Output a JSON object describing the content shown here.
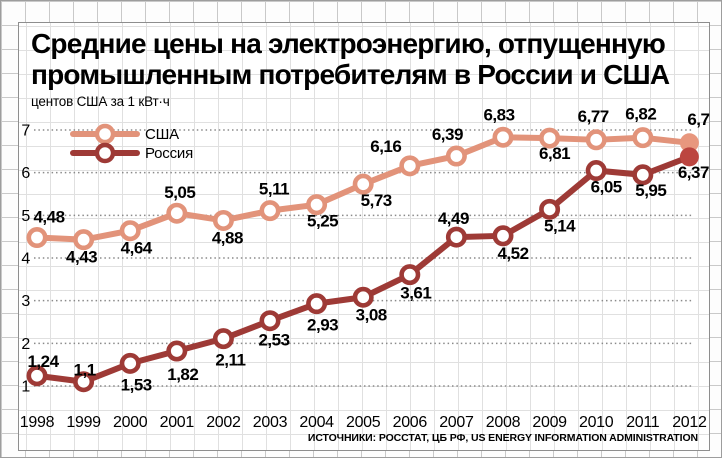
{
  "header": {
    "title_line1": "Средние цены на электроэнергию, отпущенную",
    "title_line2": "промышленным потребителям в России и США",
    "units_label": "центов США за 1 кВт·ч"
  },
  "footer": {
    "source_text": "ИСТОЧНИКИ: РОССТАТ, ЦБ РФ, US ENERGY INFORMATION ADMINISTRATION"
  },
  "colors": {
    "usa_line": "#e2937a",
    "usa_end_marker": "#e8977e",
    "russia_line": "#9e3a36",
    "russia_end_marker": "#bc4540",
    "dotted_gridline": "#8a8a8a",
    "text": "#000000"
  },
  "chart_data": {
    "type": "line",
    "title": "Средние цены на электроэнергию, отпущенную промышленным потребителям в России и США",
    "ylabel": "центов США за 1 кВт·ч",
    "xlabel": "",
    "categories": [
      "1998",
      "1999",
      "2000",
      "2001",
      "2002",
      "2003",
      "2004",
      "2005",
      "2006",
      "2007",
      "2008",
      "2009",
      "2010",
      "2011",
      "2012"
    ],
    "yticks": [
      1,
      2,
      3,
      4,
      5,
      6,
      7
    ],
    "ylim": [
      1,
      7
    ],
    "grid": "horizontal-dotted",
    "legend_position": "top-left-inside",
    "legend_marker": "line-with-open-circle",
    "series": [
      {
        "id": "usa",
        "name": "США",
        "color": "#e2937a",
        "end_fill": "#e8977e",
        "values": [
          4.48,
          4.43,
          4.64,
          5.05,
          4.88,
          5.11,
          5.25,
          5.73,
          6.16,
          6.39,
          6.83,
          6.81,
          6.77,
          6.82,
          6.7
        ],
        "labels": [
          "4,48",
          "4,43",
          "4,64",
          "5,05",
          "4,88",
          "5,11",
          "5,25",
          "5,73",
          "6,16",
          "6,39",
          "6,83",
          "6,81",
          "6,77",
          "6,82",
          "6,7"
        ],
        "label_offsets": [
          [
            12,
            -21
          ],
          [
            -2,
            17
          ],
          [
            6,
            17
          ],
          [
            3,
            -21
          ],
          [
            4,
            17
          ],
          [
            4,
            -22
          ],
          [
            6,
            16
          ],
          [
            13,
            16
          ],
          [
            -24,
            -20
          ],
          [
            -9,
            -22
          ],
          [
            -4,
            -23
          ],
          [
            5,
            15
          ],
          [
            -3,
            -24
          ],
          [
            -2,
            -24
          ],
          [
            9,
            -24
          ]
        ]
      },
      {
        "id": "russia",
        "name": "Россия",
        "color": "#9e3a36",
        "end_fill": "#bc4540",
        "values": [
          1.24,
          1.1,
          1.53,
          1.82,
          2.11,
          2.53,
          2.93,
          3.08,
          3.61,
          4.49,
          4.52,
          5.14,
          6.05,
          5.95,
          6.37
        ],
        "labels": [
          "1,24",
          "1,1",
          "1,53",
          "1,82",
          "2,11",
          "2,53",
          "2,93",
          "3,08",
          "3,61",
          "4,49",
          "4,52",
          "5,14",
          "6,05",
          "5,95",
          "6,37"
        ],
        "label_offsets": [
          [
            6,
            -15
          ],
          [
            1,
            -12
          ],
          [
            6,
            21
          ],
          [
            6,
            23
          ],
          [
            7,
            21
          ],
          [
            4,
            19
          ],
          [
            6,
            21
          ],
          [
            8,
            17
          ],
          [
            6,
            18
          ],
          [
            -3,
            -19
          ],
          [
            10,
            17
          ],
          [
            10,
            16
          ],
          [
            10,
            16
          ],
          [
            8,
            15
          ],
          [
            4,
            15
          ]
        ]
      }
    ]
  }
}
